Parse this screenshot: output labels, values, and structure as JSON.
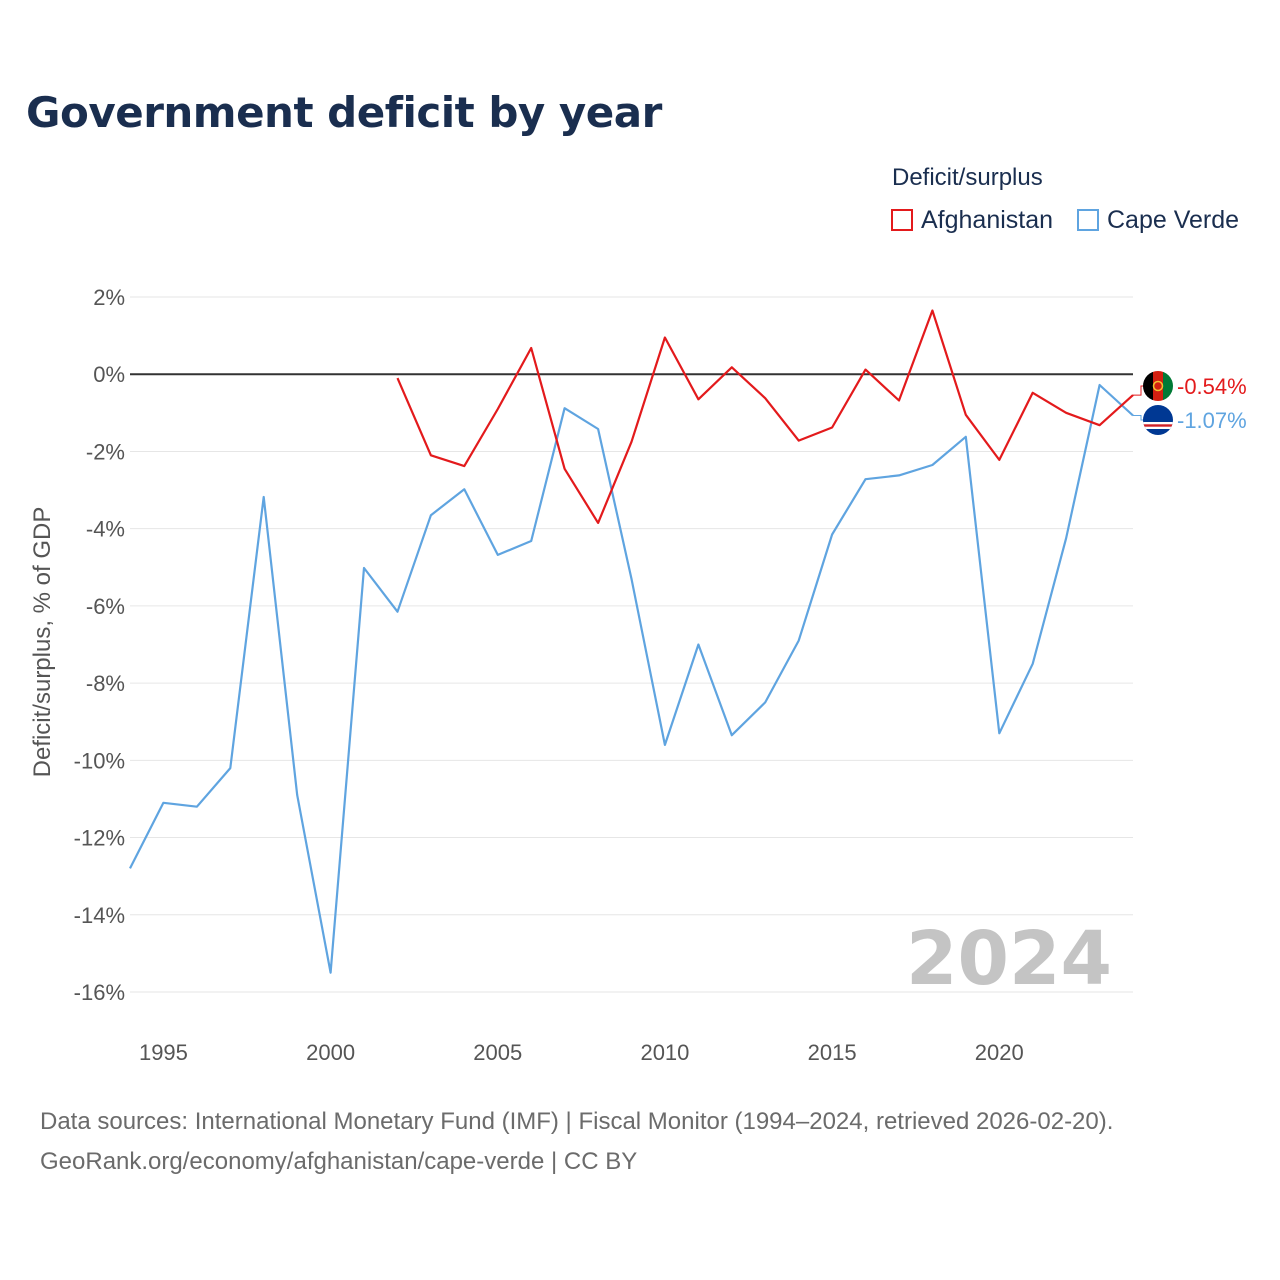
{
  "title": "Government deficit by year",
  "legend": {
    "title": "Deficit/surplus",
    "items": [
      {
        "label": "Afghanistan",
        "color": "#e31a1c"
      },
      {
        "label": "Cape Verde",
        "color": "#5fa4e0"
      }
    ]
  },
  "year_watermark": "2024",
  "footer": {
    "sources": "Data sources: International Monetary Fund (IMF) | Fiscal Monitor (1994–2024, retrieved 2026-02-20).",
    "url": "GeoRank.org/economy/afghanistan/cape-verde | CC BY"
  },
  "chart_data": {
    "type": "line",
    "title": "Government deficit by year",
    "xlabel": "",
    "ylabel": "Deficit/surplus, % of GDP",
    "xlim": [
      1994,
      2024
    ],
    "ylim": [
      -16,
      2
    ],
    "x_ticks": [
      1995,
      2000,
      2005,
      2010,
      2015,
      2020
    ],
    "y_ticks": [
      2,
      0,
      -2,
      -4,
      -6,
      -8,
      -10,
      -12,
      -14,
      -16
    ],
    "y_tick_labels": [
      "2%",
      "0%",
      "-2%",
      "-4%",
      "-6%",
      "-8%",
      "-10%",
      "-12%",
      "-14%",
      "-16%"
    ],
    "series": [
      {
        "name": "Afghanistan",
        "color": "#e31a1c",
        "end_label": "-0.54%",
        "flag_icon": "afghanistan-flag-icon",
        "x": [
          2002,
          2003,
          2004,
          2005,
          2006,
          2007,
          2008,
          2009,
          2010,
          2011,
          2012,
          2013,
          2014,
          2015,
          2016,
          2017,
          2018,
          2019,
          2020,
          2021,
          2022,
          2023,
          2024
        ],
        "values": [
          -0.1,
          -2.1,
          -2.38,
          -0.9,
          0.68,
          -2.45,
          -3.85,
          -1.75,
          0.95,
          -0.65,
          0.18,
          -0.62,
          -1.72,
          -1.38,
          0.12,
          -0.68,
          1.65,
          -1.05,
          -2.22,
          -0.48,
          -1.0,
          -1.32,
          -0.54
        ]
      },
      {
        "name": "Cape Verde",
        "color": "#5fa4e0",
        "end_label": "-1.07%",
        "flag_icon": "cape-verde-flag-icon",
        "x": [
          1994,
          1995,
          1996,
          1997,
          1998,
          1999,
          2000,
          2001,
          2002,
          2003,
          2004,
          2005,
          2006,
          2007,
          2008,
          2009,
          2010,
          2011,
          2012,
          2013,
          2014,
          2015,
          2016,
          2017,
          2018,
          2019,
          2020,
          2021,
          2022,
          2023,
          2024
        ],
        "values": [
          -12.8,
          -11.1,
          -11.2,
          -10.2,
          -3.18,
          -10.9,
          -15.5,
          -5.02,
          -6.15,
          -3.65,
          -2.98,
          -4.68,
          -4.32,
          -0.88,
          -1.42,
          -5.3,
          -9.6,
          -7.0,
          -9.35,
          -8.5,
          -6.9,
          -4.15,
          -2.72,
          -2.62,
          -2.35,
          -1.62,
          -9.3,
          -7.5,
          -4.25,
          -0.28,
          -1.07
        ]
      }
    ]
  }
}
